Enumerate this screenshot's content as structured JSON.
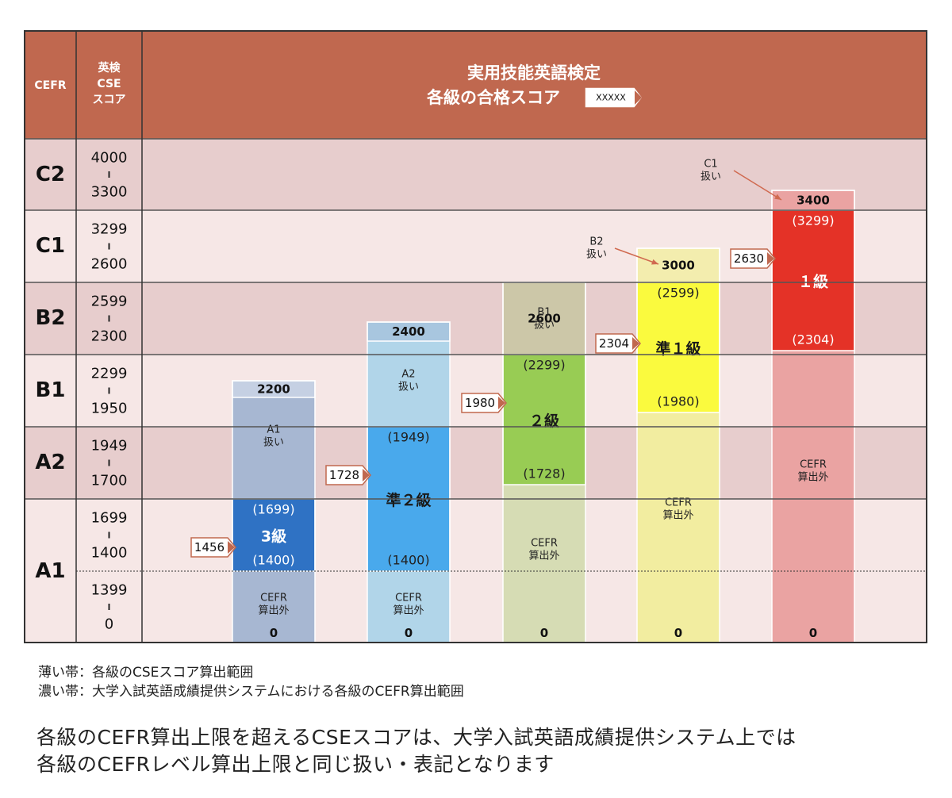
{
  "header": {
    "cefr_col": "CEFR",
    "cse_col_lines": [
      "英検",
      "CSE",
      "スコア"
    ],
    "title_lines": [
      "実用技能英語検定",
      "各級の合格スコア"
    ],
    "legend_marker_label": "XXXXX"
  },
  "colors": {
    "header_bg": "#c0684f",
    "row_dark": "#e7cdcd",
    "row_light": "#f6e7e6",
    "grid_line": "#555555",
    "arrow_marker": "#c0684f"
  },
  "chart_data": {
    "type": "table",
    "title": "実用技能英語検定 各級の合格スコア",
    "rows": [
      {
        "cefr": "C2",
        "range_top": "4000",
        "range_bottom": "3300"
      },
      {
        "cefr": "C1",
        "range_top": "3299",
        "range_bottom": "2600"
      },
      {
        "cefr": "B2",
        "range_top": "2599",
        "range_bottom": "2300"
      },
      {
        "cefr": "B1",
        "range_top": "2299",
        "range_bottom": "1950"
      },
      {
        "cefr": "A2",
        "range_top": "1949",
        "range_bottom": "1700"
      },
      {
        "cefr": "A1",
        "range_top": "1699",
        "range_bottom": "1400"
      },
      {
        "cefr": "",
        "range_top": "1399",
        "range_bottom": "0"
      }
    ],
    "grades": [
      {
        "name": "3級",
        "max_score": "2200",
        "min_score": "0",
        "pass_score": "1456",
        "cefr_upper": "(1699)",
        "cefr_lower": "(1400)",
        "upper_label": [
          "A1",
          "扱い"
        ],
        "lower_label": [
          "CEFR",
          "算出外"
        ],
        "light_color": "#a7b7d2",
        "dark_color": "#2f72c4",
        "top_color": "#c5d0e3",
        "name_color": "#ffffff"
      },
      {
        "name": "準２級",
        "max_score": "2400",
        "min_score": "0",
        "pass_score": "1728",
        "cefr_upper": "(1949)",
        "cefr_lower": "(1400)",
        "upper_label": [
          "A2",
          "扱い"
        ],
        "lower_label": [
          "CEFR",
          "算出外"
        ],
        "light_color": "#b1d5e9",
        "dark_color": "#49a9ec",
        "top_color": "#a8c6df",
        "name_color": "#1a1a1a"
      },
      {
        "name": "２級",
        "max_score": "2600",
        "min_score": "0",
        "pass_score": "1980",
        "cefr_upper": "(2299)",
        "cefr_lower": "(1728)",
        "upper_label": [
          "B1",
          "扱い"
        ],
        "lower_label": [
          "CEFR",
          "算出外"
        ],
        "light_color": "#d6dcb4",
        "dark_color": "#98cc54",
        "top_color": "#ccc7a8",
        "name_color": "#1a1a1a"
      },
      {
        "name": "準１級",
        "max_score": "3000",
        "min_score": "0",
        "pass_score": "2304",
        "cefr_upper": "(2599)",
        "cefr_lower": "(1980)",
        "upper_label": [
          "B2",
          "扱い"
        ],
        "lower_label": [
          "CEFR",
          "算出外"
        ],
        "light_color": "#f2eda0",
        "dark_color": "#fafa3e",
        "top_color": "#f3edae",
        "name_color": "#1a1a1a"
      },
      {
        "name": "１級",
        "max_score": "3400",
        "min_score": "0",
        "pass_score": "2630",
        "cefr_upper": "(3299)",
        "cefr_lower": "(2304)",
        "upper_label": [
          "C1",
          "扱い"
        ],
        "lower_label": [
          "CEFR",
          "算出外"
        ],
        "light_color": "#eaa3a2",
        "dark_color": "#e43227",
        "top_color": "#eaa3a2",
        "name_color": "#ffffff"
      }
    ]
  },
  "notes": {
    "light_band": "薄い帯：各級のCSEスコア算出範囲",
    "dark_band": "濃い帯：大学入試英語成績提供システムにおける各級のCEFR算出範囲"
  },
  "summary": {
    "line1": "各級のCEFR算出上限を超えるCSEスコアは、大学入試英語成績提供システム上では",
    "line2": "各級のCEFRレベル算出上限と同じ扱い・表記となります"
  }
}
